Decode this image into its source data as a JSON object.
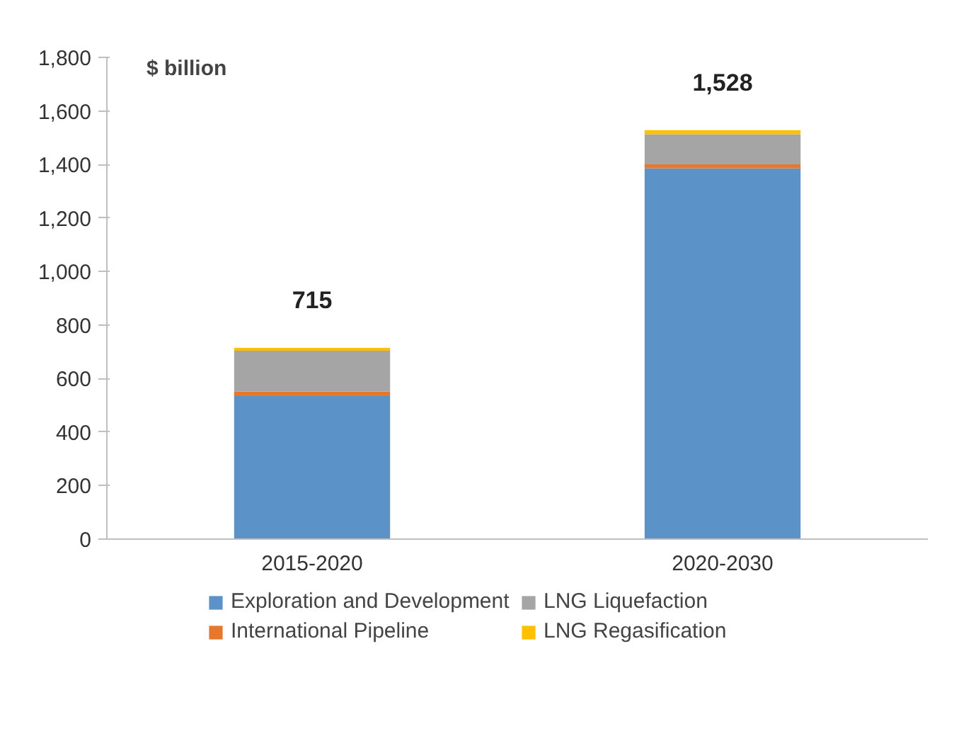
{
  "chart_data": {
    "type": "bar",
    "stacked": true,
    "ylabel": "$ billion",
    "categories": [
      "2015-2020",
      "2020-2030"
    ],
    "series": [
      {
        "name": "Exploration and Development",
        "color": "#5b93c9",
        "values": [
          535,
          1385
        ]
      },
      {
        "name": "International Pipeline",
        "color": "#e8772e",
        "values": [
          17,
          15
        ]
      },
      {
        "name": "LNG Liquefaction",
        "color": "#a5a5a5",
        "values": [
          152,
          113
        ]
      },
      {
        "name": "LNG Regasification",
        "color": "#ffc000",
        "values": [
          11,
          15
        ]
      }
    ],
    "totals": [
      "715",
      "1,528"
    ],
    "ylim": [
      0,
      1800
    ],
    "yticks": [
      0,
      {
        "value": 200,
        "label": "200"
      },
      {
        "value": 400,
        "label": "400"
      },
      {
        "value": 600,
        "label": "600"
      },
      {
        "value": 800,
        "label": "800"
      },
      {
        "value": 1000,
        "label": "1,000"
      },
      {
        "value": 1200,
        "label": "1,200"
      },
      {
        "value": 1400,
        "label": "1,400"
      },
      {
        "value": 1600,
        "label": "1,600"
      },
      {
        "value": 1800,
        "label": "1,800"
      }
    ],
    "grid": false,
    "legend": "bottom"
  }
}
